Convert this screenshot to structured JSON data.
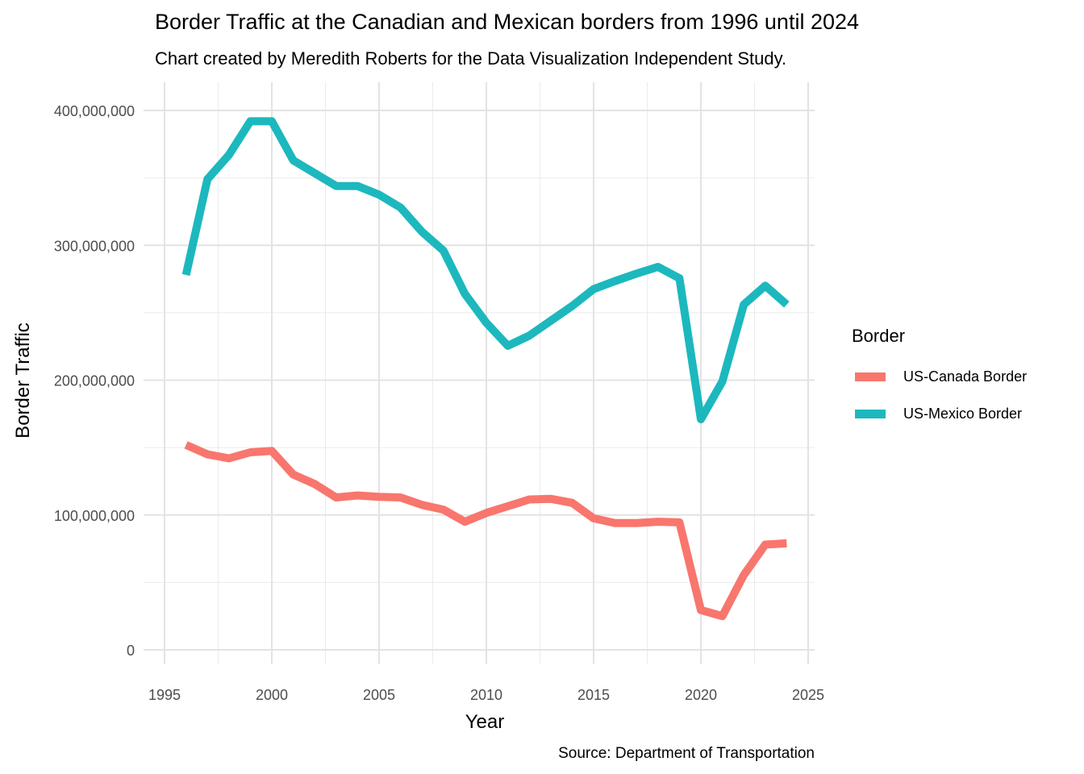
{
  "chart_data": {
    "type": "line",
    "title": "Border Traffic at the Canadian and Mexican borders from 1996 until 2024",
    "subtitle": "Chart created by Meredith Roberts for the Data Visualization Independent Study.",
    "xlabel": "Year",
    "ylabel": "Border Traffic",
    "caption": "Source: Department of Transportation",
    "xlim": [
      1995,
      2025
    ],
    "ylim": [
      0,
      400000000
    ],
    "x_ticks": [
      1995,
      2000,
      2005,
      2010,
      2015,
      2020,
      2025
    ],
    "x_tick_labels": [
      "1995",
      "2000",
      "2005",
      "2010",
      "2015",
      "2020",
      "2025"
    ],
    "y_ticks": [
      0,
      100000000,
      200000000,
      300000000,
      400000000
    ],
    "y_tick_labels": [
      "0",
      "100,000,000",
      "200,000,000",
      "300,000,000",
      "400,000,000"
    ],
    "grid": true,
    "legend_title": "Border",
    "legend_position": "right",
    "x": [
      1996,
      1997,
      1998,
      1999,
      2000,
      2001,
      2002,
      2003,
      2004,
      2005,
      2006,
      2007,
      2008,
      2009,
      2010,
      2011,
      2012,
      2013,
      2014,
      2015,
      2016,
      2017,
      2018,
      2019,
      2020,
      2021,
      2022,
      2023,
      2024
    ],
    "series": [
      {
        "name": "US-Canada Border",
        "color": "#F8766D",
        "values": [
          152000000,
          145000000,
          142000000,
          146500000,
          147500000,
          130000000,
          123000000,
          113000000,
          114500000,
          113500000,
          113000000,
          107500000,
          104000000,
          95000000,
          101500000,
          106500000,
          111500000,
          112000000,
          109000000,
          97500000,
          94000000,
          94000000,
          95000000,
          94500000,
          29500000,
          25000000,
          55500000,
          78000000,
          79000000
        ]
      },
      {
        "name": "US-Mexico Border",
        "color": "#1CB8BE",
        "values": [
          278000000,
          349000000,
          367000000,
          392000000,
          392000000,
          363000000,
          353500000,
          344000000,
          344000000,
          337500000,
          328000000,
          310000000,
          296000000,
          264000000,
          242500000,
          225500000,
          233000000,
          244000000,
          255000000,
          267500000,
          273500000,
          279000000,
          284000000,
          275500000,
          171000000,
          199000000,
          256000000,
          270000000,
          256000000
        ]
      }
    ]
  }
}
